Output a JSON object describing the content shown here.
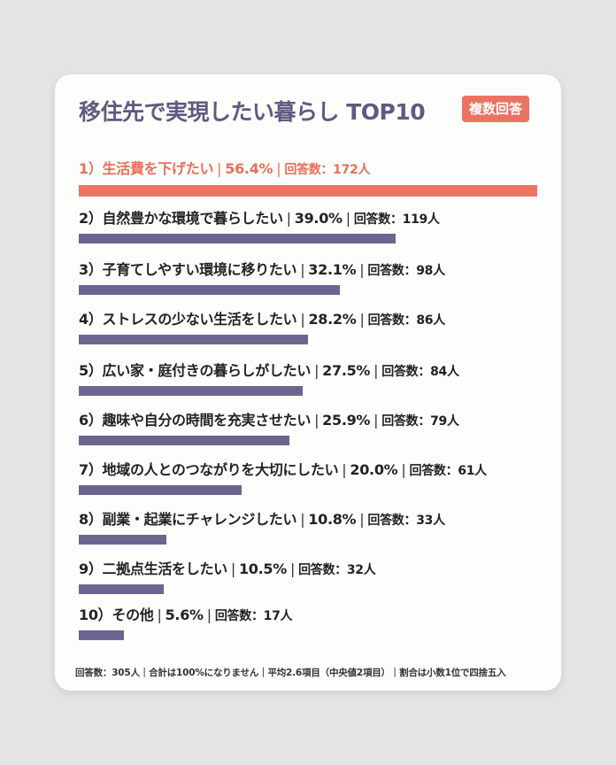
{
  "header": {
    "title": "移住先で実現したい暮らし TOP10",
    "badge": "複数回答"
  },
  "items": [
    {
      "rank": "1）",
      "label": "生活費を下げたい",
      "pct": "56.4%",
      "count": "回答数：172人",
      "pct_value": 56.4
    },
    {
      "rank": "2）",
      "label": "自然豊かな環境で暮らしたい",
      "pct": "39.0%",
      "count": "回答数：119人",
      "pct_value": 39.0
    },
    {
      "rank": "3）",
      "label": "子育てしやすい環境に移りたい",
      "pct": "32.1%",
      "count": "回答数：98人",
      "pct_value": 32.1
    },
    {
      "rank": "4）",
      "label": "ストレスの少ない生活をしたい",
      "pct": "28.2%",
      "count": "回答数：86人",
      "pct_value": 28.2
    },
    {
      "rank": "5）",
      "label": "広い家・庭付きの暮らしがしたい",
      "pct": "27.5%",
      "count": "回答数：84人",
      "pct_value": 27.5
    },
    {
      "rank": "6）",
      "label": "趣味や自分の時間を充実させたい",
      "pct": "25.9%",
      "count": "回答数：79人",
      "pct_value": 25.9
    },
    {
      "rank": "7）",
      "label": "地域の人とのつながりを大切にしたい",
      "pct": "20.0%",
      "count": "回答数：61人",
      "pct_value": 20.0
    },
    {
      "rank": "8）",
      "label": "副業・起業にチャレンジしたい",
      "pct": "10.8%",
      "count": "回答数：33人",
      "pct_value": 10.8
    },
    {
      "rank": "9）",
      "label": "二拠点生活をしたい",
      "pct": "10.5%",
      "count": "回答数：32人",
      "pct_value": 10.5
    },
    {
      "rank": "10）",
      "label": "その他",
      "pct": "5.6%",
      "count": "回答数：17人",
      "pct_value": 5.6
    }
  ],
  "footer": {
    "note": "回答数：305人｜合計は100%になりません｜平均2.6項目（中央値2項目）｜割合は小数1位で四捨五入"
  },
  "colors": {
    "accent": "#ee7462",
    "bar": "#6b6590",
    "title": "#5e5a80",
    "card": "#fdfdfc",
    "background": "#e4e4e6"
  },
  "chart_data": {
    "type": "bar",
    "orientation": "horizontal",
    "title": "移住先で実現したい暮らし TOP10",
    "subtitle": "複数回答",
    "categories": [
      "生活費を下げたい",
      "自然豊かな環境で暮らしたい",
      "子育てしやすい環境に移りたい",
      "ストレスの少ない生活をしたい",
      "広い家・庭付きの暮らしがしたい",
      "趣味や自分の時間を充実させたい",
      "地域の人とのつながりを大切にしたい",
      "副業・起業にチャレンジしたい",
      "二拠点生活をしたい",
      "その他"
    ],
    "series": [
      {
        "name": "割合(%)",
        "values": [
          56.4,
          39.0,
          32.1,
          28.2,
          27.5,
          25.9,
          20.0,
          10.8,
          10.5,
          5.6
        ]
      },
      {
        "name": "回答数(人)",
        "values": [
          172,
          119,
          98,
          86,
          84,
          79,
          61,
          33,
          32,
          17
        ]
      }
    ],
    "total_respondents": 305,
    "annotations": [
      "合計は100%になりません",
      "平均2.6項目（中央値2項目）",
      "割合は小数1位で四捨五入"
    ],
    "grid": false,
    "legend": "none"
  }
}
